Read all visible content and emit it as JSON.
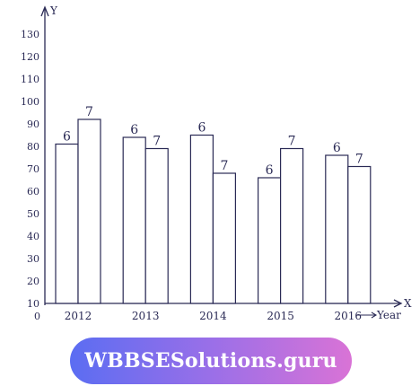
{
  "chart_data": {
    "type": "bar",
    "categories": [
      "2012",
      "2013",
      "2014",
      "2015",
      "2016"
    ],
    "series": [
      {
        "name": "6",
        "values": [
          81,
          84,
          85,
          66,
          76
        ]
      },
      {
        "name": "7",
        "values": [
          92,
          79,
          68,
          79,
          71
        ]
      }
    ],
    "data_labels": [
      [
        "6",
        "7"
      ],
      [
        "6",
        "7"
      ],
      [
        "6",
        "7"
      ],
      [
        "6",
        "7"
      ],
      [
        "6",
        "7"
      ]
    ],
    "yticks": [
      10,
      20,
      30,
      40,
      50,
      60,
      70,
      80,
      90,
      100,
      110,
      120,
      130
    ],
    "ylim": [
      10,
      135
    ],
    "xlabel": "Year",
    "ylabel": "Y",
    "origin_label": "0",
    "x_axis_end_label": "X",
    "grid": false,
    "colors": {
      "ink": "#2a2a55",
      "bar_fill": "#ffffff"
    }
  },
  "watermark": {
    "text": "WBBSESolutions.guru"
  }
}
